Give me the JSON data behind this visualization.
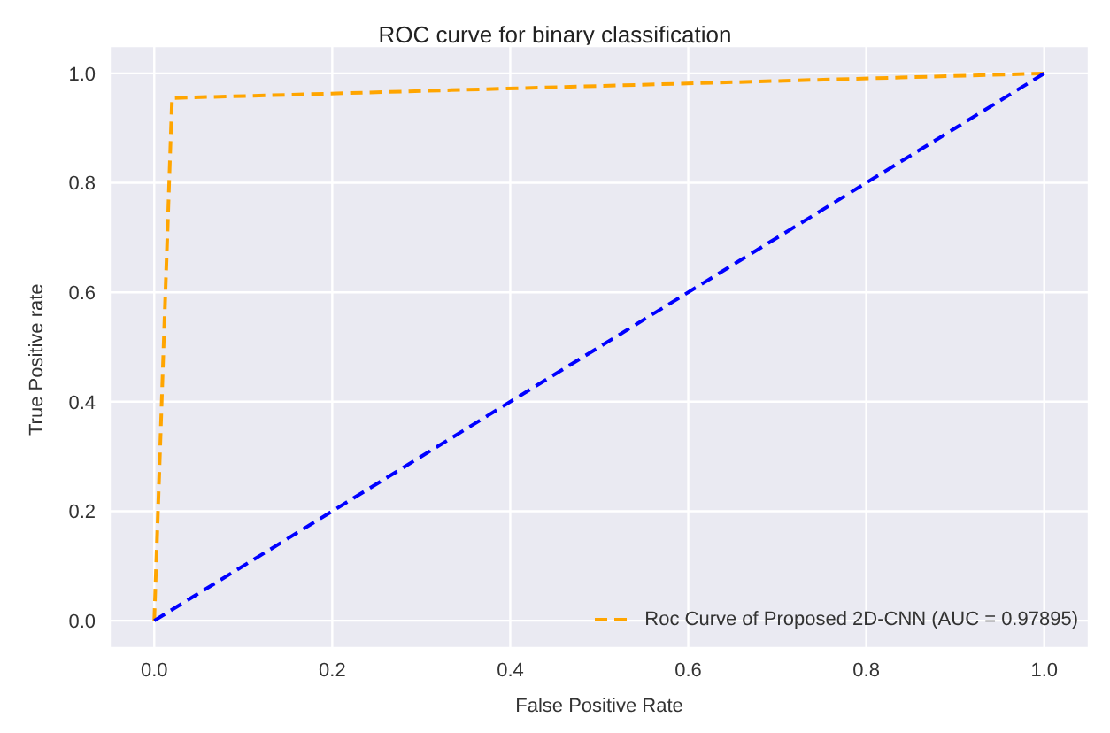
{
  "chart_data": {
    "type": "line",
    "title": "ROC curve for binary classification",
    "xlabel": "False Positive Rate",
    "ylabel": "True Positive rate",
    "xlim": [
      -0.05,
      1.05
    ],
    "ylim": [
      -0.05,
      1.05
    ],
    "xticks": [
      {
        "value": 0,
        "label": "0.0"
      },
      0.2,
      0.4,
      0.6,
      0.8,
      {
        "value": 1,
        "label": "1.0"
      }
    ],
    "yticks": [
      {
        "value": 0,
        "label": "0.0"
      },
      0.2,
      0.4,
      0.6,
      0.8,
      {
        "value": 1,
        "label": "1.0"
      }
    ],
    "series": [
      {
        "name": "Roc Curve of Proposed 2D-CNN (AUC = 0.97895)",
        "color": "#ffa500",
        "x": [
          0,
          0.02,
          1
        ],
        "values": [
          0,
          0.955,
          1
        ]
      },
      {
        "color": "#0000ff",
        "x": [
          0,
          1
        ],
        "values": [
          0,
          1
        ]
      }
    ],
    "grid": true,
    "legend": "bottom right",
    "line_style": "dashed",
    "marker": "none"
  }
}
